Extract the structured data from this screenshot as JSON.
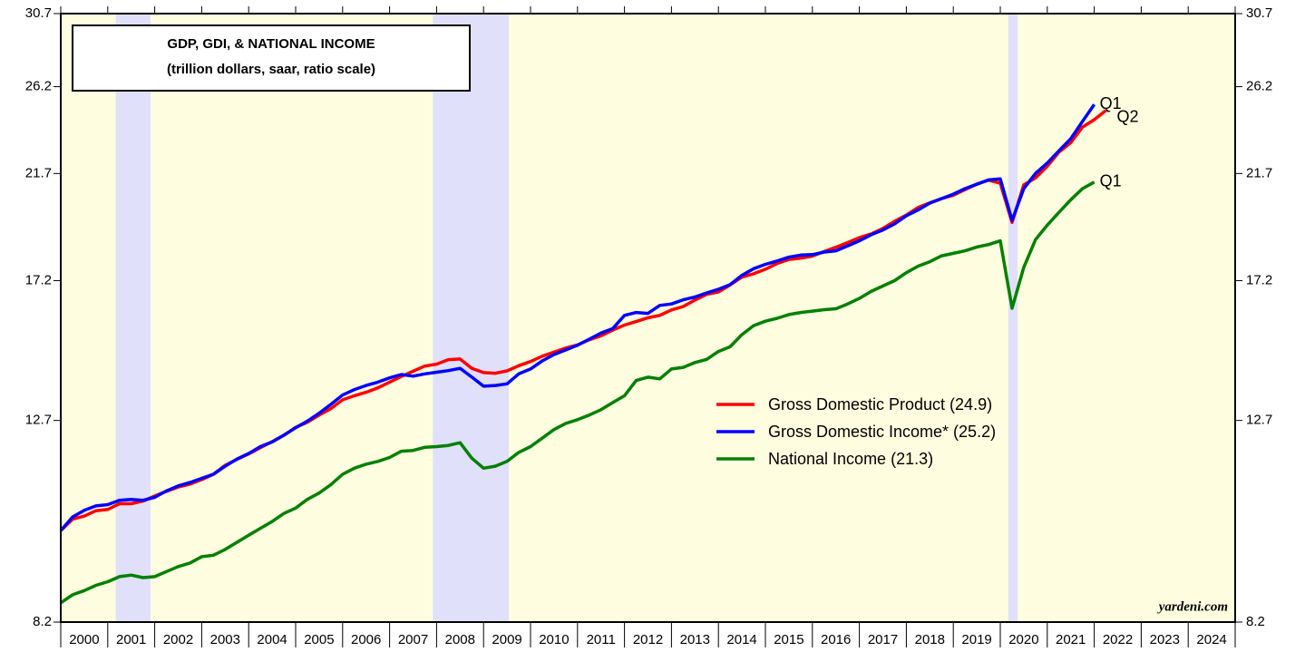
{
  "chart_data": {
    "type": "line",
    "title": [
      "GDP, GDI, & NATIONAL INCOME",
      "(trillion dollars, saar, ratio scale)"
    ],
    "watermark": "yardeni.com",
    "ylog": true,
    "ylim": [
      8.2,
      30.7
    ],
    "yticks": [
      8.2,
      12.7,
      17.2,
      21.7,
      26.2,
      30.7
    ],
    "xlim": [
      2000,
      2025
    ],
    "xticks": [
      2000,
      2001,
      2002,
      2003,
      2004,
      2005,
      2006,
      2007,
      2008,
      2009,
      2010,
      2011,
      2012,
      2013,
      2014,
      2015,
      2016,
      2017,
      2018,
      2019,
      2020,
      2021,
      2022,
      2023,
      2024,
      2025
    ],
    "year_labels": [
      "2000",
      "2001",
      "2002",
      "2003",
      "2004",
      "2005",
      "2006",
      "2007",
      "2008",
      "2009",
      "2010",
      "2011",
      "2012",
      "2013",
      "2014",
      "2015",
      "2016",
      "2017",
      "2018",
      "2019",
      "2020",
      "2021",
      "2022",
      "2023",
      "2024"
    ],
    "plot_color": "#fffde0",
    "shade_color": "#e0e0fa",
    "recessions": [
      [
        2001.17,
        2001.91
      ],
      [
        2007.92,
        2009.54
      ],
      [
        2020.17,
        2020.37
      ]
    ],
    "x": [
      2000,
      2000.25,
      2000.5,
      2000.75,
      2001,
      2001.25,
      2001.5,
      2001.75,
      2002,
      2002.25,
      2002.5,
      2002.75,
      2003,
      2003.25,
      2003.5,
      2003.75,
      2004,
      2004.25,
      2004.5,
      2004.75,
      2005,
      2005.25,
      2005.5,
      2005.75,
      2006,
      2006.25,
      2006.5,
      2006.75,
      2007,
      2007.25,
      2007.5,
      2007.75,
      2008,
      2008.25,
      2008.5,
      2008.75,
      2009,
      2009.25,
      2009.5,
      2009.75,
      2010,
      2010.25,
      2010.5,
      2010.75,
      2011,
      2011.25,
      2011.5,
      2011.75,
      2012,
      2012.25,
      2012.5,
      2012.75,
      2013,
      2013.25,
      2013.5,
      2013.75,
      2014,
      2014.25,
      2014.5,
      2014.75,
      2015,
      2015.25,
      2015.5,
      2015.75,
      2016,
      2016.25,
      2016.5,
      2016.75,
      2017,
      2017.25,
      2017.5,
      2017.75,
      2018,
      2018.25,
      2018.5,
      2018.75,
      2019,
      2019.25,
      2019.5,
      2019.75,
      2020,
      2020.25,
      2020.5,
      2020.75,
      2021,
      2021.25,
      2021.5,
      2021.75,
      2022,
      2022.25
    ],
    "series": [
      {
        "name": "Gross Domestic Product (24.9)",
        "color": "#ff0000",
        "end_label": "Q2",
        "values": [
          10.0,
          10.25,
          10.32,
          10.44,
          10.47,
          10.6,
          10.6,
          10.66,
          10.78,
          10.89,
          10.99,
          11.06,
          11.17,
          11.3,
          11.52,
          11.67,
          11.81,
          11.97,
          12.13,
          12.3,
          12.51,
          12.65,
          12.85,
          13.03,
          13.28,
          13.4,
          13.5,
          13.63,
          13.8,
          13.97,
          14.13,
          14.29,
          14.35,
          14.49,
          14.51,
          14.22,
          14.09,
          14.07,
          14.14,
          14.3,
          14.43,
          14.6,
          14.73,
          14.86,
          14.96,
          15.13,
          15.26,
          15.45,
          15.62,
          15.74,
          15.87,
          15.95,
          16.14,
          16.26,
          16.49,
          16.7,
          16.78,
          17.04,
          17.33,
          17.46,
          17.63,
          17.85,
          18.01,
          18.06,
          18.14,
          18.32,
          18.49,
          18.68,
          18.88,
          19.03,
          19.26,
          19.56,
          19.83,
          20.16,
          20.36,
          20.55,
          20.7,
          20.96,
          21.21,
          21.39,
          21.25,
          19.52,
          21.17,
          21.49,
          22.04,
          22.74,
          23.2,
          24.0,
          24.39,
          24.88
        ]
      },
      {
        "name": "Gross Domestic Income* (25.2)",
        "color": "#0000ff",
        "end_label": "Q1",
        "values": [
          10.0,
          10.3,
          10.45,
          10.55,
          10.58,
          10.68,
          10.7,
          10.68,
          10.75,
          10.9,
          11.02,
          11.1,
          11.2,
          11.3,
          11.5,
          11.68,
          11.82,
          12.0,
          12.12,
          12.3,
          12.5,
          12.68,
          12.9,
          13.15,
          13.42,
          13.58,
          13.7,
          13.8,
          13.93,
          14.03,
          13.98,
          14.05,
          14.1,
          14.15,
          14.22,
          13.95,
          13.68,
          13.7,
          13.75,
          14.05,
          14.2,
          14.45,
          14.65,
          14.8,
          14.95,
          15.15,
          15.35,
          15.5,
          15.95,
          16.05,
          16.02,
          16.3,
          16.35,
          16.5,
          16.6,
          16.75,
          16.88,
          17.05,
          17.4,
          17.65,
          17.82,
          17.95,
          18.1,
          18.18,
          18.2,
          18.3,
          18.35,
          18.55,
          18.75,
          19.0,
          19.2,
          19.45,
          19.8,
          20.05,
          20.35,
          20.55,
          20.75,
          21.0,
          21.2,
          21.4,
          21.45,
          19.6,
          21.0,
          21.7,
          22.2,
          22.8,
          23.4,
          24.3,
          25.2,
          null
        ]
      },
      {
        "name": "National Income (21.3)",
        "color": "#008000",
        "end_label": "Q1",
        "values": [
          8.55,
          8.7,
          8.78,
          8.88,
          8.95,
          9.05,
          9.08,
          9.03,
          9.05,
          9.15,
          9.25,
          9.32,
          9.45,
          9.48,
          9.6,
          9.75,
          9.9,
          10.05,
          10.2,
          10.38,
          10.5,
          10.7,
          10.85,
          11.05,
          11.3,
          11.45,
          11.55,
          11.62,
          11.72,
          11.88,
          11.9,
          11.98,
          12.0,
          12.03,
          12.1,
          11.7,
          11.45,
          11.5,
          11.62,
          11.85,
          12.0,
          12.22,
          12.45,
          12.62,
          12.72,
          12.85,
          13.0,
          13.2,
          13.4,
          13.85,
          13.95,
          13.9,
          14.2,
          14.25,
          14.4,
          14.5,
          14.75,
          14.9,
          15.3,
          15.6,
          15.75,
          15.85,
          15.98,
          16.05,
          16.1,
          16.15,
          16.18,
          16.35,
          16.55,
          16.8,
          17.0,
          17.2,
          17.5,
          17.75,
          17.92,
          18.15,
          18.25,
          18.35,
          18.5,
          18.6,
          18.75,
          16.2,
          17.7,
          18.8,
          19.4,
          19.95,
          20.5,
          21.0,
          21.3,
          null
        ]
      }
    ]
  }
}
